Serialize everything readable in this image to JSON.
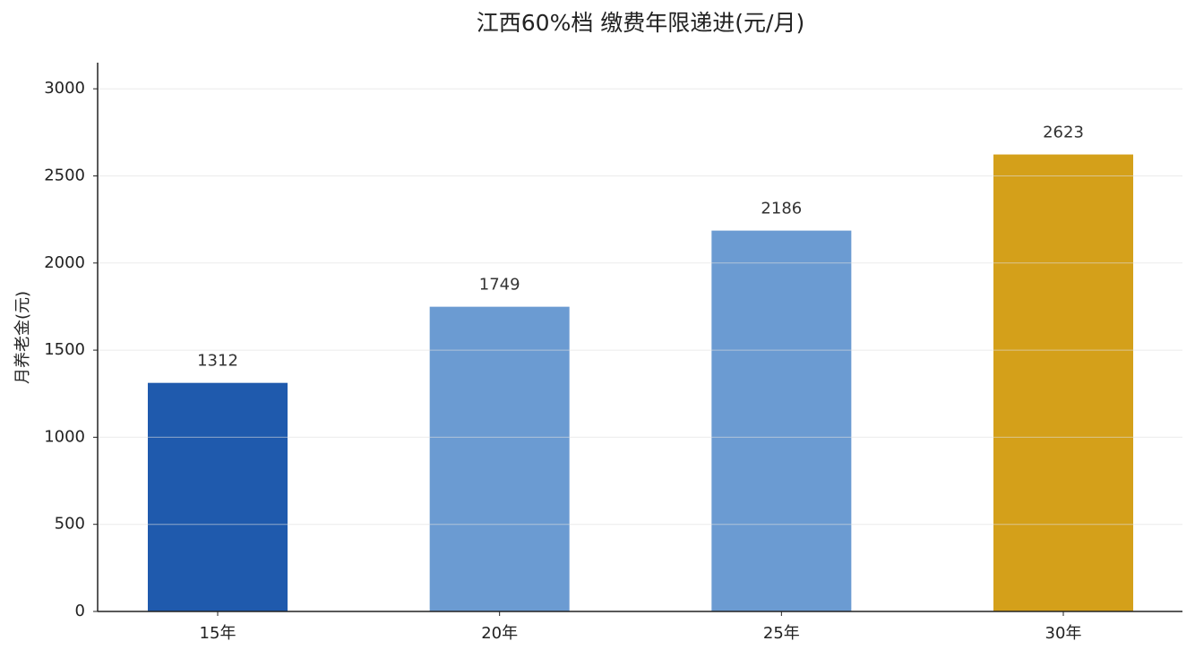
{
  "chart_data": {
    "type": "bar",
    "title": "江西60%档 缴费年限递进(元/月)",
    "y_label": "月养老金(元)",
    "categories": [
      "15年",
      "20年",
      "25年",
      "30年"
    ],
    "values": [
      1312,
      1749,
      2186,
      2623
    ],
    "colors": [
      "#1f5aad",
      "#6b9bd2",
      "#6b9bd2",
      "#d4a01a"
    ],
    "ylim": [
      0,
      3150
    ],
    "yticks": [
      0,
      500,
      1000,
      1500,
      2000,
      2500,
      3000
    ],
    "grid": true
  }
}
